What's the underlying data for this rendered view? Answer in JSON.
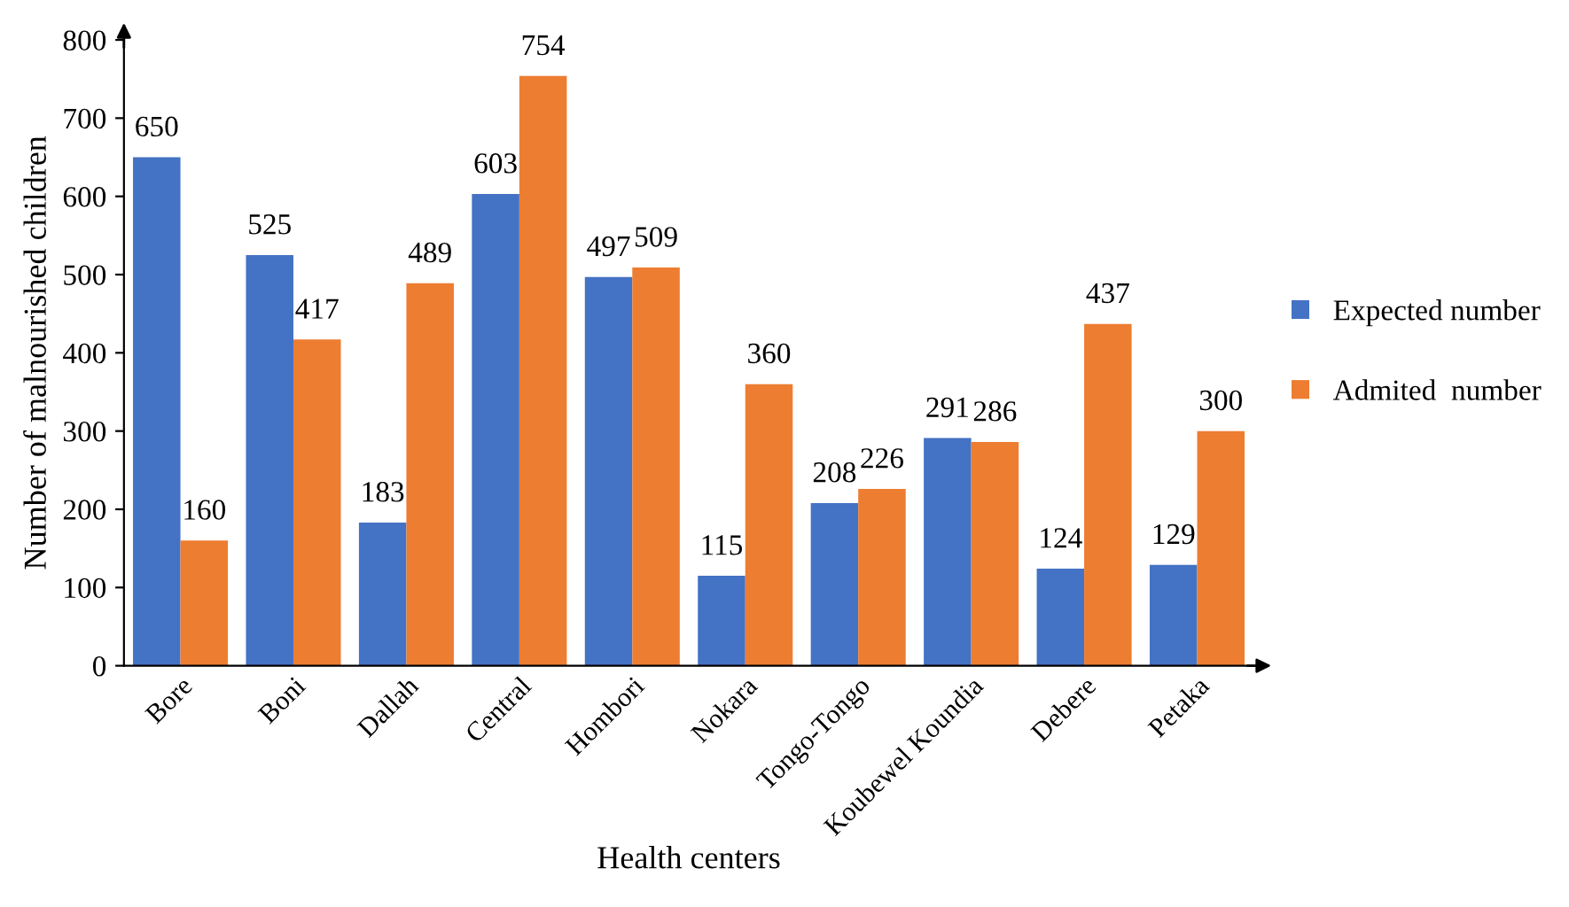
{
  "chart_data": {
    "type": "bar",
    "xlabel": "Health centers",
    "ylabel": "Number of malnourished children",
    "categories": [
      "Bore",
      "Boni",
      "Dallah",
      "Central",
      "Hombori",
      "Nokara",
      "Tongo-Tongo",
      "Koubewel Koundia",
      "Debere",
      "Petaka"
    ],
    "series": [
      {
        "name": "Expected number",
        "color": "#4472c4",
        "values": [
          650,
          525,
          183,
          603,
          497,
          115,
          208,
          291,
          124,
          129
        ]
      },
      {
        "name": "Admited  number",
        "color": "#ed7d31",
        "values": [
          160,
          417,
          489,
          754,
          509,
          360,
          226,
          286,
          437,
          300
        ]
      }
    ],
    "ylim": [
      0,
      800
    ],
    "yticks": [
      0,
      100,
      200,
      300,
      400,
      500,
      600,
      700,
      800
    ],
    "data_labels": true,
    "grid": false,
    "legend": "right"
  }
}
